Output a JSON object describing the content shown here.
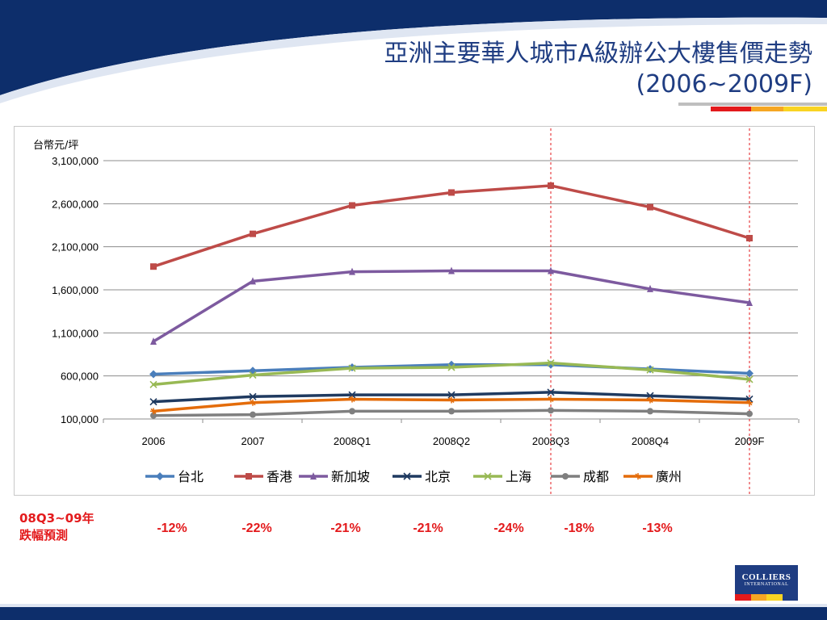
{
  "slide": {
    "title_line1": "亞洲主要華人城市A級辦公大樓售價走勢",
    "title_line2": "(2006~2009F)",
    "note_label_line1": "08Q3~09年",
    "note_label_line2": "跌幅預測",
    "forecast_drops": [
      "-12%",
      "-22%",
      "-21%",
      "-21%",
      "-24%",
      "-18%",
      "-13%"
    ],
    "logo_line1": "COLLIERS",
    "logo_line2": "INTERNATIONAL"
  },
  "colors": {
    "brand_navy": "#0d2e6b",
    "accent_red": "#e31a1c"
  },
  "chart_data": {
    "type": "line",
    "title": "",
    "ylabel": "台幣元/坪",
    "xlabel": "",
    "categories": [
      "2006",
      "2007",
      "2008Q1",
      "2008Q2",
      "2008Q3",
      "2008Q4",
      "2009F"
    ],
    "ylim": [
      100000,
      3100000
    ],
    "yticks": [
      100000,
      600000,
      1100000,
      1600000,
      2100000,
      2600000,
      3100000
    ],
    "ytick_labels": [
      "100,000",
      "600,000",
      "1,100,000",
      "1,600,000",
      "2,100,000",
      "2,600,000",
      "3,100,000"
    ],
    "grid": true,
    "legend_position": "bottom",
    "marker_lines_at": [
      "2008Q3",
      "2009F"
    ],
    "series": [
      {
        "name": "台北",
        "color": "#4a7ebb",
        "marker": "diamond",
        "values": [
          620000,
          660000,
          700000,
          730000,
          730000,
          680000,
          630000
        ]
      },
      {
        "name": "香港",
        "color": "#be4b48",
        "marker": "square",
        "values": [
          1870000,
          2250000,
          2580000,
          2730000,
          2810000,
          2560000,
          2200000
        ]
      },
      {
        "name": "新加坡",
        "color": "#7d5a9f",
        "marker": "triangle",
        "values": [
          1000000,
          1700000,
          1810000,
          1820000,
          1820000,
          1610000,
          1450000
        ]
      },
      {
        "name": "北京",
        "color": "#1f3a60",
        "marker": "x",
        "values": [
          300000,
          360000,
          380000,
          380000,
          410000,
          370000,
          330000
        ]
      },
      {
        "name": "上海",
        "color": "#98b954",
        "marker": "x",
        "values": [
          500000,
          610000,
          690000,
          700000,
          750000,
          670000,
          560000
        ]
      },
      {
        "name": "成都",
        "color": "#7f7f7f",
        "marker": "circle",
        "values": [
          140000,
          150000,
          190000,
          190000,
          200000,
          190000,
          160000
        ]
      },
      {
        "name": "廣州",
        "color": "#e46c0a",
        "marker": "star",
        "values": [
          190000,
          290000,
          330000,
          320000,
          330000,
          320000,
          290000
        ]
      }
    ]
  }
}
